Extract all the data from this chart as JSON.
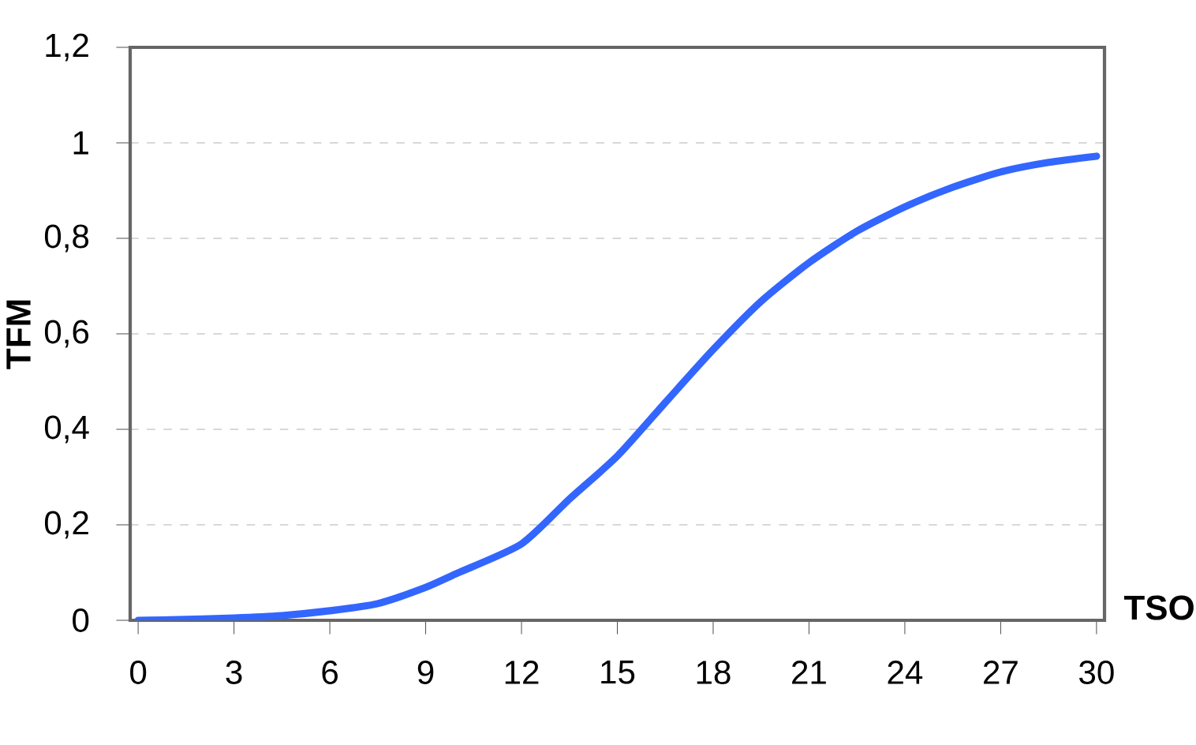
{
  "chart_data": {
    "type": "line",
    "xlabel": "TSO",
    "ylabel": "TFM",
    "x": [
      0,
      1,
      3,
      4.5,
      6,
      7.5,
      9,
      10,
      12,
      13.5,
      15,
      16.5,
      18,
      19.5,
      21,
      22.5,
      24,
      25.5,
      27,
      28.5,
      30
    ],
    "series": [
      {
        "color": "#3366ff",
        "values": [
          0,
          0.001,
          0.005,
          0.01,
          0.02,
          0.035,
          0.069,
          0.099,
          0.16,
          0.254,
          0.344,
          0.456,
          0.567,
          0.668,
          0.749,
          0.815,
          0.866,
          0.907,
          0.939,
          0.959,
          0.972
        ]
      }
    ],
    "xlim": [
      -0.25,
      30.25
    ],
    "ylim": [
      0,
      1.2
    ],
    "xticks": [
      0,
      3,
      6,
      9,
      12,
      15,
      18,
      21,
      24,
      27,
      30
    ],
    "yticks": [
      0,
      {
        "value": 0.2,
        "label": "0,2"
      },
      {
        "value": 0.4,
        "label": "0,4"
      },
      {
        "value": 0.6,
        "label": "0,6"
      },
      {
        "value": 0.8,
        "label": "0,8"
      },
      1,
      {
        "value": 1.2,
        "label": "1,2"
      }
    ],
    "grid": "y",
    "line_style": "solid"
  }
}
